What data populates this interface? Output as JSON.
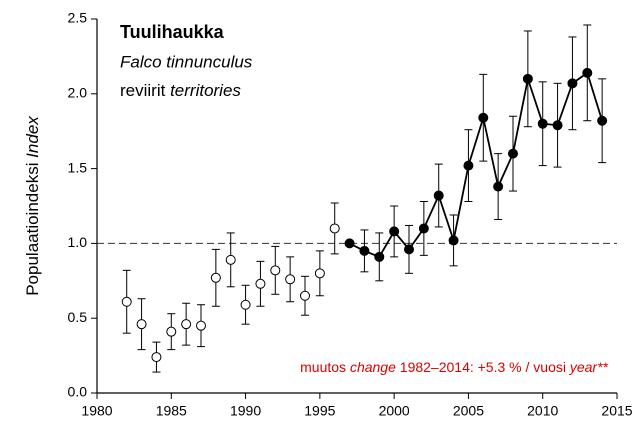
{
  "chart_data": {
    "type": "errorbar",
    "title": "Tuulihaukka",
    "subtitle": "Falco tinnunculus",
    "subtitle2": [
      "reviirit ",
      "territories"
    ],
    "ylabel": [
      "Populaatioindeksi ",
      "Index"
    ],
    "annotation": [
      "muutos ",
      "change",
      " 1982–2014: +5.3 % / vuosi ",
      "year**"
    ],
    "annotation_color": "#e00000",
    "hline": 1.0,
    "xlim": [
      1980,
      2015
    ],
    "xticks": [
      1980,
      1985,
      1990,
      1995,
      2000,
      2005,
      2010,
      2015
    ],
    "ylim": [
      0,
      2.5
    ],
    "yticks": [
      {
        "value": 0,
        "label": "0.0"
      },
      {
        "value": 0.5,
        "label": "0.5"
      },
      {
        "value": 1,
        "label": "1.0"
      },
      {
        "value": 1.5,
        "label": "1.5"
      },
      {
        "value": 2,
        "label": "2.0"
      },
      {
        "value": 2.5,
        "label": "2.5"
      }
    ],
    "series": [
      {
        "marker": "open",
        "line": false,
        "color": "#000000",
        "x": [
          1982,
          1983,
          1984,
          1985,
          1986,
          1987,
          1988,
          1989,
          1990,
          1991,
          1992,
          1993,
          1994,
          1995,
          1996
        ],
        "values": [
          0.61,
          0.46,
          0.24,
          0.41,
          0.46,
          0.45,
          0.77,
          0.89,
          0.59,
          0.73,
          0.82,
          0.76,
          0.65,
          0.8,
          1.1
        ],
        "errors": [
          0.21,
          0.17,
          0.1,
          0.12,
          0.14,
          0.14,
          0.19,
          0.18,
          0.13,
          0.15,
          0.16,
          0.15,
          0.13,
          0.15,
          0.17
        ]
      },
      {
        "marker": "filled",
        "line": true,
        "color": "#000000",
        "x": [
          1997,
          1998,
          1999,
          2000,
          2001,
          2002,
          2003,
          2004,
          2005,
          2006,
          2007,
          2008,
          2009,
          2010,
          2011,
          2012,
          2013,
          2014
        ],
        "values": [
          1.0,
          0.95,
          0.91,
          1.08,
          0.96,
          1.1,
          1.32,
          1.02,
          1.52,
          1.84,
          1.38,
          1.6,
          2.1,
          1.8,
          1.79,
          2.07,
          2.14,
          1.82
        ],
        "errors": [
          0,
          0.14,
          0.16,
          0.17,
          0.16,
          0.18,
          0.21,
          0.17,
          0.24,
          0.29,
          0.22,
          0.25,
          0.32,
          0.28,
          0.28,
          0.31,
          0.32,
          0.28
        ]
      }
    ]
  }
}
